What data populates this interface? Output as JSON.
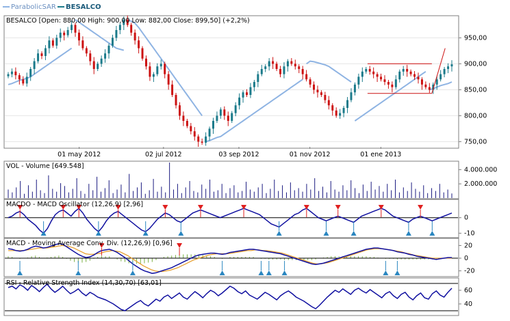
{
  "legend": {
    "items": [
      {
        "name": "ParabolicSAR",
        "color": "#8fb4e3"
      },
      {
        "name": "BESALCO",
        "color": "#1a7a8a"
      }
    ]
  },
  "panels": {
    "price": {
      "label": "BESALCO [Open: 880,00  High: 900,00  Low: 882,00  Close: 899,50] (+2,2%)",
      "yticks": [
        "950,00",
        "900,00",
        "850,00",
        "800,00",
        "750,00"
      ],
      "xticks": [
        "01 may 2012",
        "02 jul 2012",
        "03 sep 2012",
        "01 nov 2012",
        "01 ene 2013"
      ]
    },
    "volume": {
      "label": "VOL - Volume [649.548]",
      "yticks": [
        "4.000.000",
        "2.000.000"
      ]
    },
    "macdo": {
      "label": "MACDO - MACD Oscillator (12,26,9) [2,96]",
      "yticks": [
        "0",
        "-10"
      ]
    },
    "macd": {
      "label": "MACD - Moving Average Conv. Div. (12,26,9) [0,96]",
      "yticks": [
        "20",
        "0",
        "-20"
      ]
    },
    "rsi": {
      "label": "RSI - Relative Strength Index (14,30,70) [63,01]",
      "yticks": [
        "60",
        "40"
      ]
    }
  },
  "colors": {
    "up": "#1a7a8a",
    "down": "#cc1111",
    "sar": "#8fb4e3",
    "line": "#1010a0",
    "signal": "#e8a030",
    "hist": "#7ab040",
    "sell_marker": "#e02020",
    "buy_marker": "#2a86c0"
  },
  "chart_data": [
    {
      "type": "candlestick",
      "title": "BESALCO",
      "open": 880.0,
      "high": 900.0,
      "low": 882.0,
      "close": 899.5,
      "change_pct": 2.2,
      "ylim": [
        740,
        990
      ],
      "xlabels": [
        "01 may 2012",
        "02 jul 2012",
        "03 sep 2012",
        "01 nov 2012",
        "01 ene 2013"
      ],
      "series_close": [
        880,
        885,
        878,
        870,
        862,
        875,
        890,
        905,
        920,
        915,
        930,
        945,
        935,
        950,
        960,
        955,
        965,
        975,
        960,
        945,
        930,
        920,
        905,
        890,
        900,
        910,
        920,
        935,
        950,
        965,
        975,
        985,
        975,
        960,
        945,
        930,
        910,
        895,
        875,
        880,
        895,
        900,
        880,
        860,
        840,
        820,
        800,
        790,
        780,
        770,
        760,
        750,
        748,
        760,
        775,
        790,
        800,
        812,
        800,
        790,
        805,
        820,
        835,
        845,
        840,
        855,
        865,
        880,
        890,
        895,
        905,
        900,
        890,
        880,
        895,
        905,
        900,
        895,
        890,
        880,
        870,
        860,
        850,
        845,
        840,
        830,
        820,
        810,
        800,
        805,
        815,
        830,
        845,
        860,
        875,
        885,
        890,
        885,
        880,
        875,
        870,
        865,
        860,
        855,
        870,
        885,
        890,
        885,
        880,
        875,
        870,
        860,
        855,
        850,
        860,
        870,
        880,
        890,
        895,
        899
      ],
      "sar": [
        860,
        862,
        865,
        868,
        870,
        872,
        875,
        880,
        885,
        890,
        895,
        900,
        905,
        910,
        915,
        920,
        925,
        930,
        985,
        980,
        975,
        970,
        965,
        960,
        955,
        950,
        945,
        940,
        935,
        930,
        928,
        926,
        985,
        982,
        978,
        970,
        960,
        950,
        940,
        930,
        920,
        910,
        900,
        890,
        880,
        870,
        860,
        850,
        840,
        830,
        820,
        810,
        800,
        750,
        752,
        755,
        758,
        760,
        765,
        770,
        775,
        780,
        785,
        790,
        795,
        800,
        805,
        810,
        815,
        820,
        825,
        830,
        835,
        840,
        845,
        850,
        855,
        860,
        865,
        870,
        900,
        905,
        904,
        902,
        900,
        898,
        895,
        890,
        885,
        880,
        875,
        870,
        865,
        790,
        795,
        800,
        805,
        810,
        815,
        820,
        825,
        830,
        835,
        840,
        845,
        850,
        855,
        860,
        865,
        870,
        875,
        880,
        885,
        850,
        852,
        855,
        858,
        860,
        862,
        865
      ],
      "resistance": [
        [
          0.81,
          900
        ],
        [
          0.955,
          900
        ]
      ],
      "support": [
        [
          0.81,
          843
        ],
        [
          0.955,
          843
        ]
      ],
      "trend_line": [
        [
          0.955,
          843
        ],
        [
          0.985,
          930
        ]
      ]
    },
    {
      "type": "bar",
      "title": "VOL - Volume",
      "last": 649548,
      "ylim": [
        0,
        5000000
      ],
      "values": [
        1200000,
        800000,
        1500000,
        2400000,
        600000,
        1800000,
        900000,
        2600000,
        1100000,
        700000,
        3200000,
        1300000,
        900000,
        2100000,
        1700000,
        800000,
        1300000,
        2800000,
        1000000,
        600000,
        2000000,
        1100000,
        3000000,
        900000,
        1400000,
        2500000,
        700000,
        1200000,
        1900000,
        800000,
        3400000,
        1000000,
        1500000,
        2200000,
        600000,
        1100000,
        2700000,
        900000,
        1600000,
        800000,
        5200000,
        1200000,
        2000000,
        700000,
        1500000,
        2400000,
        1000000,
        800000,
        1900000,
        1300000,
        2600000,
        900000,
        1100000,
        2000000,
        700000,
        1400000,
        1800000,
        800000,
        1000000,
        2300000,
        1200000,
        900000,
        1500000,
        2000000,
        700000,
        1300000,
        2600000,
        1000000,
        1800000,
        800000,
        2200000,
        1100000,
        1400000,
        900000,
        2000000,
        1200000,
        2800000,
        1000000,
        1600000,
        800000,
        2400000,
        1200000,
        900000,
        1800000,
        1100000,
        2500000,
        1400000,
        700000,
        1900000,
        1000000,
        2300000,
        1200000,
        1700000,
        900000,
        2000000,
        1100000,
        2600000,
        800000,
        1500000,
        1000000,
        2200000,
        1300000,
        900000,
        1800000,
        700000,
        1400000,
        1000000,
        2000000,
        800000,
        1200000,
        650000
      ]
    },
    {
      "type": "line",
      "title": "MACDO - MACD Oscillator (12,26,9)",
      "last": 2.96,
      "ylim": [
        -12,
        10
      ],
      "values": [
        0,
        1,
        3,
        4,
        2,
        -1,
        -3,
        -5,
        -8,
        -10,
        -7,
        -2,
        2,
        4,
        5,
        3,
        1,
        4,
        6,
        3,
        -1,
        -4,
        -7,
        -9,
        -6,
        -2,
        1,
        3,
        4,
        2,
        0,
        -2,
        -4,
        -6,
        -8,
        -9,
        -7,
        -4,
        -1,
        1,
        3,
        2,
        0,
        -2,
        -3,
        -1,
        1,
        3,
        4,
        5,
        4,
        3,
        2,
        1,
        0,
        1,
        2,
        3,
        4,
        5,
        6,
        5,
        4,
        3,
        2,
        0,
        -2,
        -4,
        -5,
        -6,
        -4,
        -2,
        0,
        2,
        3,
        5,
        6,
        4,
        2,
        0,
        -1,
        -2,
        -1,
        0,
        1,
        0,
        -1,
        -2,
        -3,
        -1,
        1,
        2,
        3,
        4,
        5,
        6,
        5,
        3,
        1,
        0,
        -1,
        -2,
        -3,
        -1,
        0,
        1,
        0,
        -1,
        -2,
        -1,
        0,
        1,
        2,
        3
      ]
    },
    {
      "type": "line",
      "title": "MACD - Moving Average Conv. Div. (12,26,9)",
      "last": 0.96,
      "ylim": [
        -28,
        28
      ],
      "macd": [
        15,
        14,
        12,
        11,
        12,
        14,
        17,
        19,
        18,
        16,
        17,
        19,
        21,
        23,
        22,
        18,
        14,
        10,
        6,
        3,
        1,
        2,
        5,
        9,
        12,
        13,
        14,
        12,
        9,
        5,
        1,
        -4,
        -9,
        -13,
        -17,
        -20,
        -22,
        -24,
        -23,
        -21,
        -19,
        -17,
        -15,
        -12,
        -9,
        -6,
        -3,
        0,
        3,
        5,
        6,
        7,
        8,
        8,
        7,
        6,
        7,
        9,
        10,
        11,
        12,
        13,
        14,
        14,
        13,
        12,
        11,
        10,
        9,
        8,
        7,
        5,
        3,
        1,
        -1,
        -3,
        -5,
        -7,
        -9,
        -10,
        -9,
        -8,
        -6,
        -4,
        -2,
        0,
        2,
        4,
        6,
        8,
        10,
        12,
        14,
        15,
        16,
        16,
        15,
        14,
        13,
        12,
        10,
        9,
        8,
        6,
        5,
        3,
        2,
        1,
        0,
        -1,
        -2,
        -1,
        0,
        1,
        0.96
      ],
      "signal": [
        12,
        12,
        12,
        12,
        12,
        13,
        14,
        15,
        16,
        16,
        16,
        17,
        18,
        19,
        20,
        19,
        18,
        16,
        13,
        10,
        7,
        6,
        6,
        7,
        8,
        10,
        11,
        12,
        11,
        10,
        7,
        4,
        0,
        -4,
        -8,
        -12,
        -15,
        -18,
        -20,
        -21,
        -21,
        -20,
        -19,
        -17,
        -15,
        -12,
        -9,
        -6,
        -3,
        -1,
        1,
        3,
        5,
        6,
        7,
        7,
        7,
        7,
        8,
        9,
        10,
        11,
        12,
        12,
        13,
        13,
        12,
        12,
        11,
        10,
        9,
        8,
        6,
        4,
        2,
        0,
        -2,
        -4,
        -6,
        -8,
        -9,
        -9,
        -8,
        -7,
        -5,
        -3,
        -1,
        1,
        3,
        5,
        7,
        9,
        11,
        13,
        14,
        15,
        15,
        15,
        14,
        13,
        12,
        11,
        10,
        8,
        7,
        5,
        4,
        3,
        2,
        1,
        0,
        0,
        0,
        0,
        0,
        0
      ]
    },
    {
      "type": "line",
      "title": "RSI - Relative Strength Index (14,30,70)",
      "last": 63.01,
      "ylim": [
        25,
        75
      ],
      "values": [
        64,
        66,
        62,
        68,
        65,
        60,
        67,
        63,
        58,
        64,
        69,
        62,
        57,
        61,
        66,
        60,
        55,
        58,
        62,
        56,
        52,
        57,
        54,
        50,
        48,
        46,
        43,
        40,
        36,
        32,
        30,
        34,
        38,
        42,
        45,
        40,
        37,
        42,
        47,
        44,
        50,
        53,
        48,
        52,
        56,
        50,
        47,
        53,
        58,
        54,
        49,
        55,
        60,
        57,
        52,
        56,
        61,
        66,
        63,
        58,
        55,
        59,
        53,
        50,
        47,
        52,
        57,
        54,
        50,
        46,
        52,
        56,
        59,
        55,
        50,
        47,
        44,
        40,
        36,
        33,
        38,
        44,
        50,
        55,
        60,
        57,
        62,
        58,
        54,
        60,
        63,
        59,
        56,
        61,
        57,
        53,
        49,
        55,
        58,
        52,
        48,
        54,
        57,
        50,
        46,
        52,
        56,
        49,
        47,
        55,
        59,
        53,
        50,
        57,
        63
      ]
    }
  ]
}
